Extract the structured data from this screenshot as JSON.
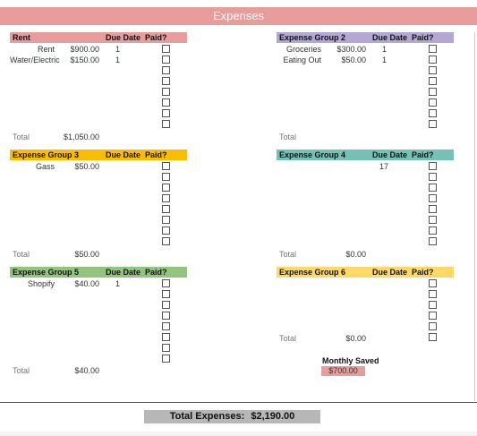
{
  "title": "Expenses",
  "colors": {
    "title_bg": "#e89d9d",
    "group1": "#e89d9d",
    "group2": "#b4a7d6",
    "group3": "#fbbc04",
    "group4": "#76c1b5",
    "group5": "#93c47d",
    "group6": "#ffd966",
    "saved_bg": "#e89d9d",
    "total_bg": "#b7b7b7"
  },
  "headers": {
    "due": "Due Date",
    "paid": "Paid?",
    "total": "Total"
  },
  "groups": [
    {
      "name": "Rent",
      "items": [
        {
          "name": "Rent",
          "amount": "$900.00",
          "due": "1"
        },
        {
          "name": "Water/Electric",
          "amount": "$150.00",
          "due": "1"
        }
      ],
      "total": "$1,050.00"
    },
    {
      "name": "Expense Group 2",
      "items": [
        {
          "name": "Groceries",
          "amount": "$300.00",
          "due": "1"
        },
        {
          "name": "Eating Out",
          "amount": "$50.00",
          "due": "1"
        }
      ],
      "total": ""
    },
    {
      "name": "Expense Group 3",
      "items": [
        {
          "name": "Gass",
          "amount": "$50.00",
          "due": ""
        }
      ],
      "total": "$50.00"
    },
    {
      "name": "Expense Group 4",
      "items": [
        {
          "name": "",
          "amount": "",
          "due": "17"
        }
      ],
      "total": "$0.00"
    },
    {
      "name": "Expense Group 5",
      "items": [
        {
          "name": "Shopify",
          "amount": "$40.00",
          "due": "1"
        }
      ],
      "total": "$40.00"
    },
    {
      "name": "Expense Group 6",
      "items": [],
      "total": "$0.00"
    }
  ],
  "monthly_saved": {
    "label": "Monthly Saved",
    "value": "$700.00"
  },
  "total_expenses": {
    "label": "Total Expenses:",
    "value": "$2,190.00"
  }
}
